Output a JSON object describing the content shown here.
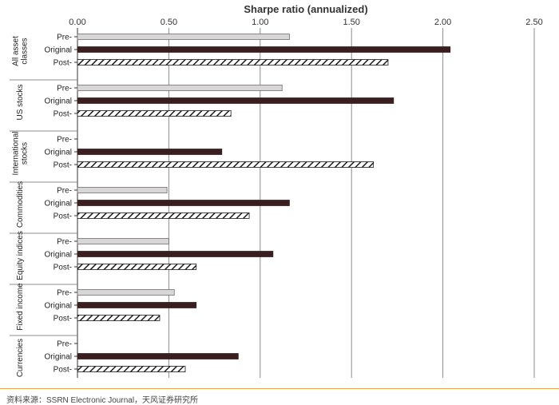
{
  "chart_data": {
    "type": "bar",
    "orientation": "horizontal",
    "title": "Sharpe ratio (annualized)",
    "xlim": [
      0,
      2.5
    ],
    "xticks": [
      "0.00",
      "0.50",
      "1.00",
      "1.50",
      "2.00",
      "2.50"
    ],
    "xtick_values": [
      0,
      0.5,
      1.0,
      1.5,
      2.0,
      2.5
    ],
    "grid": true,
    "groups": [
      {
        "name": "All asset classes",
        "label_lines": [
          "All asset",
          "classes"
        ],
        "bars": [
          {
            "label": "Pre-",
            "value": 1.16
          },
          {
            "label": "Original",
            "value": 2.04
          },
          {
            "label": "Post-",
            "value": 1.7
          }
        ]
      },
      {
        "name": "US stocks",
        "label_lines": [
          "US stocks"
        ],
        "bars": [
          {
            "label": "Pre-",
            "value": 1.12
          },
          {
            "label": "Original",
            "value": 1.73
          },
          {
            "label": "Post-",
            "value": 0.84
          }
        ]
      },
      {
        "name": "International stocks",
        "label_lines": [
          "International",
          "stocks"
        ],
        "bars": [
          {
            "label": "Pre-",
            "value": null
          },
          {
            "label": "Original",
            "value": 0.79
          },
          {
            "label": "Post-",
            "value": 1.62
          }
        ]
      },
      {
        "name": "Commodities",
        "label_lines": [
          "Commodities"
        ],
        "bars": [
          {
            "label": "Pre-",
            "value": 0.49
          },
          {
            "label": "Original",
            "value": 1.16
          },
          {
            "label": "Post-",
            "value": 0.94
          }
        ]
      },
      {
        "name": "Equity indices",
        "label_lines": [
          "Equity indices"
        ],
        "bars": [
          {
            "label": "Pre-",
            "value": 0.5
          },
          {
            "label": "Original",
            "value": 1.07
          },
          {
            "label": "Post-",
            "value": 0.65
          }
        ]
      },
      {
        "name": "Fixed income",
        "label_lines": [
          "Fixed income"
        ],
        "bars": [
          {
            "label": "Pre-",
            "value": 0.53
          },
          {
            "label": "Original",
            "value": 0.65
          },
          {
            "label": "Post-",
            "value": 0.45
          }
        ]
      },
      {
        "name": "Currencies",
        "label_lines": [
          "Currencies"
        ],
        "bars": [
          {
            "label": "Pre-",
            "value": null
          },
          {
            "label": "Original",
            "value": 0.88
          },
          {
            "label": "Post-",
            "value": 0.59
          }
        ]
      }
    ],
    "series_styles": {
      "Pre-": {
        "fill": "#d8d6d6",
        "stroke": "#6e6e6e"
      },
      "Original": {
        "fill": "#3b1e20",
        "stroke": "#3b1e20"
      },
      "Post-": {
        "pattern": "diagonal-hatch",
        "fill": "#ffffff",
        "stroke": "#1a1a1a"
      }
    }
  },
  "source": "资料来源：SSRN Electronic Journal，天风证券研究所"
}
